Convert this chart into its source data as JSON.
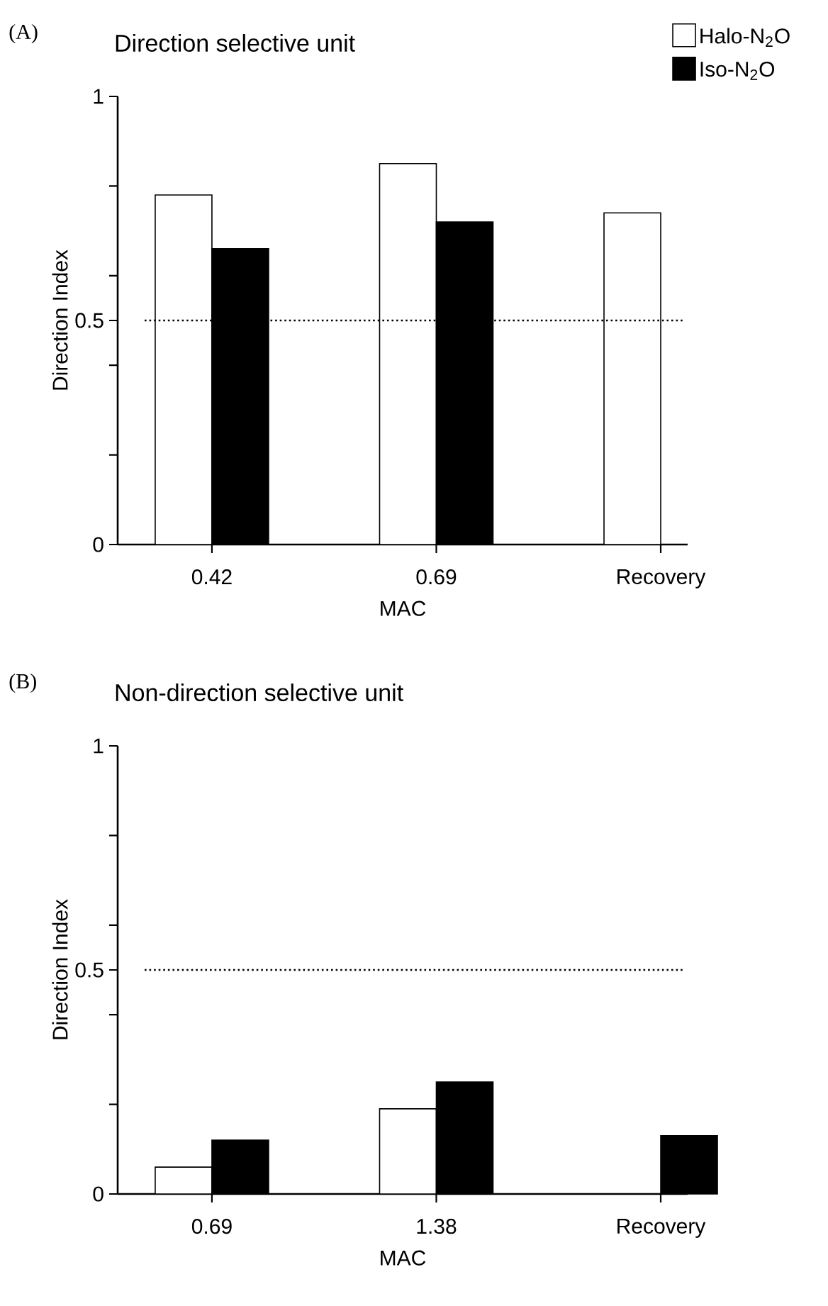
{
  "chart_data": [
    {
      "type": "bar",
      "title": "Direction selective unit",
      "xlabel": "MAC",
      "ylabel": "Direction Index",
      "annotations": [
        "(A)"
      ],
      "categories": [
        "0.42",
        "0.69",
        "Recovery"
      ],
      "series": [
        {
          "name": "Halo-N$_{2}$O",
          "color": "#ffffff",
          "values": [
            0.78,
            0.85,
            0.74
          ]
        },
        {
          "name": "Iso-N$_{2}$O",
          "color": "#000000",
          "values": [
            0.66,
            0.72,
            null
          ]
        }
      ],
      "ylim": [
        0,
        1
      ],
      "yticks": [
        0,
        {
          "value": 0.2,
          "label": null
        },
        {
          "value": 0.4,
          "label": null
        },
        0.5,
        {
          "value": 0.6,
          "label": null
        },
        {
          "value": 0.8,
          "label": null
        },
        1
      ],
      "ref_lines": [
        {
          "axis": "y",
          "value": 0.5,
          "line_style": "dotted"
        }
      ],
      "legend": "top right"
    },
    {
      "type": "bar",
      "title": "Non-direction selective unit",
      "xlabel": "MAC",
      "ylabel": "Direction Index",
      "annotations": [
        "(B)"
      ],
      "categories": [
        "0.69",
        "1.38",
        "Recovery"
      ],
      "series": [
        {
          "color": "#ffffff",
          "values": [
            0.06,
            0.19,
            null
          ]
        },
        {
          "color": "#000000",
          "values": [
            0.12,
            0.25,
            0.13
          ]
        }
      ],
      "ylim": [
        0,
        1
      ],
      "yticks": [
        0,
        {
          "value": 0.2,
          "label": null
        },
        {
          "value": 0.4,
          "label": null
        },
        0.5,
        {
          "value": 0.6,
          "label": null
        },
        {
          "value": 0.8,
          "label": null
        },
        1
      ],
      "ref_lines": [
        {
          "axis": "y",
          "value": 0.5,
          "line_style": "dotted"
        }
      ]
    }
  ]
}
